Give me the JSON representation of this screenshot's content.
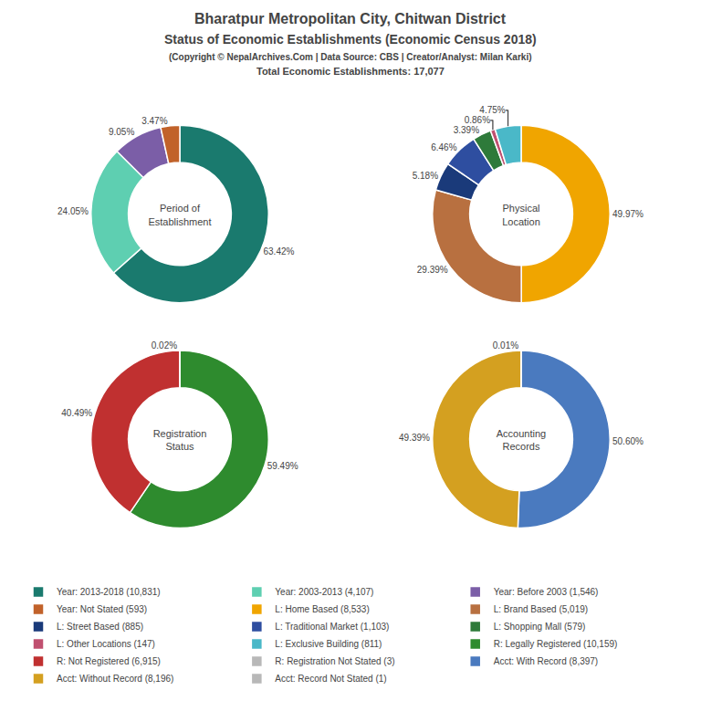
{
  "title": "Bharatpur Metropolitan City, Chitwan District\nStatus of Economic Establishments (Economic Census 2018)",
  "subtitle": "(Copyright © NepalArchives.Com | Data Source: CBS | Creator/Analyst: Milan Karki)\nTotal Economic Establishments: 17,077",
  "chart_data": [
    {
      "type": "pie",
      "title": "Period of\nEstablishment",
      "categories": [
        "Year: 2013-2018 (10,831)",
        "Year: 2003-2013 (4,107)",
        "Year: Before 2003 (1,546)",
        "Year: Not Stated (593)"
      ],
      "values": [
        63.42,
        24.05,
        9.05,
        3.47
      ],
      "value_labels": [
        "63.42%",
        "24.05%",
        "9.05%",
        "3.47%"
      ],
      "colors": [
        "#1a7a6e",
        "#5ecfb1",
        "#7b5ea7",
        "#c1622a"
      ],
      "data_labels": true,
      "legend": "bottom"
    },
    {
      "type": "pie",
      "title": "Physical\nLocation",
      "categories": [
        "L: Home Based (8,533)",
        "L: Brand Based (5,019)",
        "L: Street Based (885)",
        "L: Traditional Market (1,103)",
        "L: Shopping Mall (579)",
        "L: Other Locations (147)",
        "L: Exclusive Building (811)"
      ],
      "values": [
        49.97,
        29.39,
        5.18,
        6.46,
        3.39,
        0.86,
        4.75
      ],
      "value_labels": [
        "49.97%",
        "29.39%",
        "5.18%",
        "6.46%",
        "3.39%",
        "0.86%",
        "4.75%"
      ],
      "colors": [
        "#f0a500",
        "#b87040",
        "#1a3a7a",
        "#2e4ea0",
        "#2e7a3a",
        "#c05070",
        "#4ab8c8"
      ],
      "data_labels": true,
      "legend": "bottom"
    },
    {
      "type": "pie",
      "title": "Registration\nStatus",
      "categories": [
        "R: Legally Registered (10,159)",
        "R: Not Registered (6,915)",
        "R: Registration Not Stated (3)"
      ],
      "values": [
        59.49,
        40.49,
        0.02
      ],
      "value_labels": [
        "59.49%",
        "40.49%",
        "0.02%"
      ],
      "colors": [
        "#2e8b2e",
        "#c03030",
        "#b8b8b8"
      ],
      "data_labels": true,
      "legend": "bottom"
    },
    {
      "type": "pie",
      "title": "Accounting\nRecords",
      "categories": [
        "Acct: With Record (8,397)",
        "Acct: Without Record (8,196)",
        "Acct: Record Not Stated (1)"
      ],
      "values": [
        50.6,
        49.39,
        0.01
      ],
      "value_labels": [
        "50.60%",
        "49.39%",
        "0.01%"
      ],
      "colors": [
        "#4a7abf",
        "#d4a020",
        "#b8b8b8"
      ],
      "data_labels": true,
      "legend": "bottom"
    }
  ]
}
